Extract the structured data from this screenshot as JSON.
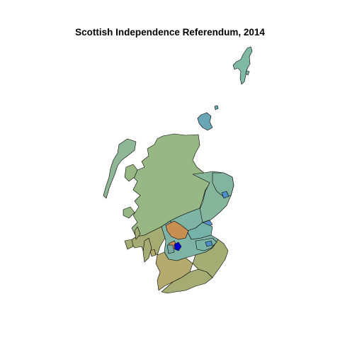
{
  "title": "Scottish Independence Referendum, 2014",
  "colors": {
    "highlands": "#97b784",
    "southwest": "#a4ac73",
    "ayrshire": "#b4a96f",
    "borders": "#a3ad74",
    "orkney": "#6aa6b6",
    "shetland": "#7fb8a3",
    "western_isles": "#8fb697",
    "dundee": "#5b8fc8",
    "aberdeenshire_teal": "#82b5a0",
    "northeast": "#85b69b",
    "lothian": "#7ab3a4",
    "central_belt": "#7fb3a5",
    "fife": "#75b2a8",
    "north_lanarkshire": "#c88f52",
    "glasgow": "#0000d0",
    "edinburgh": "#4d8fc6",
    "renfrew": "#7aa8a5"
  }
}
